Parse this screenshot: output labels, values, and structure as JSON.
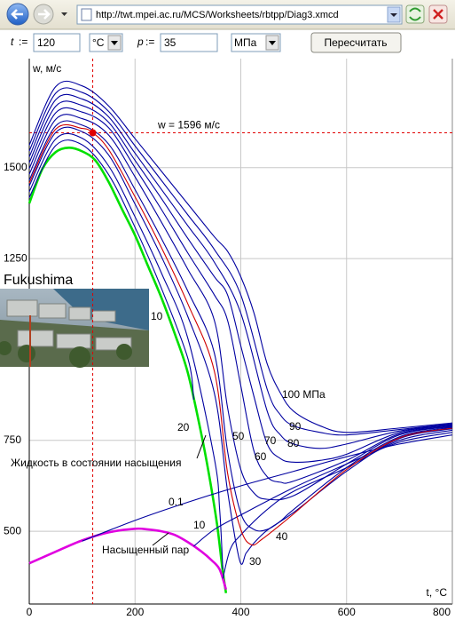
{
  "browser": {
    "url": "http://twt.mpei.ac.ru/MCS/Worksheets/rbtpp/Diag3.xmcd"
  },
  "form": {
    "t_label": "t",
    "assign": ":=",
    "t_value": 120,
    "t_unit": "°C",
    "p_label": "p",
    "p_value": 35,
    "p_unit": "МПа",
    "button": "Пересчитать"
  },
  "chart_data": {
    "type": "line",
    "x_label": "t, °C",
    "y_label": "w, м/с",
    "xlim": [
      0,
      800
    ],
    "ylim": [
      300,
      1800
    ],
    "xticks": [
      0,
      200,
      400,
      600,
      800
    ],
    "yticks": [
      500,
      750,
      1250,
      1500
    ],
    "grid": true,
    "marker": {
      "x": 120,
      "y": 1596,
      "label": "w = 1596 м/с",
      "color": "#e00000"
    },
    "photo_caption": "Fukushima",
    "series": [
      {
        "name": "Жидкость в состоянии насыщения",
        "color": "#00e000",
        "x": [
          0,
          25,
          50,
          75,
          100,
          125,
          150,
          175,
          200,
          225,
          250,
          275,
          300,
          325,
          340,
          355,
          365,
          372
        ],
        "values": [
          1402,
          1497,
          1543,
          1555,
          1545,
          1520,
          1461,
          1387,
          1314,
          1228,
          1142,
          1044,
          935,
          770,
          655,
          520,
          400,
          330
        ]
      },
      {
        "name": "Насыщенный пар",
        "color": "#e000e0",
        "x": [
          0,
          50,
          100,
          150,
          200,
          225,
          250,
          275,
          300,
          325,
          345,
          360,
          372
        ],
        "values": [
          412,
          444,
          475,
          497,
          507,
          505,
          500,
          490,
          470,
          445,
          420,
          395,
          340
        ]
      },
      {
        "name": "0.1",
        "color": "#0000a0",
        "x": [
          100,
          200,
          300,
          400,
          500,
          600,
          700,
          800
        ],
        "values": [
          473,
          530,
          580,
          625,
          665,
          705,
          740,
          765
        ]
      },
      {
        "name": "10",
        "color": "#0000a0",
        "x": [
          0,
          50,
          100,
          150,
          200,
          250,
          300,
          311,
          null,
          311,
          350,
          400,
          500,
          600,
          700,
          800
        ],
        "values": [
          1418,
          1561,
          1563,
          1481,
          1336,
          1168,
          975,
          862,
          null,
          459,
          505,
          545,
          620,
          685,
          745,
          772
        ]
      },
      {
        "name": "20",
        "color": "#0000a0",
        "x": [
          0,
          50,
          100,
          150,
          200,
          250,
          300,
          350,
          360,
          366,
          null,
          366,
          380,
          400,
          450,
          500,
          600,
          700,
          800
        ],
        "values": [
          1434,
          1579,
          1581,
          1505,
          1365,
          1210,
          1030,
          700,
          560,
          395,
          null,
          370,
          450,
          490,
          560,
          610,
          675,
          750,
          778
        ]
      },
      {
        "name": "30",
        "color": "#0000a0",
        "x": [
          0,
          50,
          100,
          150,
          200,
          250,
          300,
          350,
          375,
          398,
          410,
          425,
          450,
          500,
          600,
          700,
          800
        ],
        "values": [
          1450,
          1597,
          1599,
          1535,
          1400,
          1255,
          1090,
          880,
          610,
          419,
          440,
          468,
          503,
          552,
          665,
          755,
          782
        ]
      },
      {
        "color": "#d00000",
        "x": [
          0,
          50,
          100,
          120,
          150,
          200,
          250,
          300,
          350,
          375,
          400,
          420,
          440,
          475,
          500,
          600,
          700,
          800
        ],
        "values": [
          1458,
          1606,
          1608,
          1596,
          1550,
          1420,
          1280,
          1125,
          940,
          660,
          505,
          463,
          478,
          518,
          548,
          670,
          757,
          784
        ]
      },
      {
        "name": "40",
        "color": "#0000a0",
        "x": [
          0,
          50,
          100,
          150,
          200,
          250,
          300,
          350,
          375,
          400,
          425,
          450,
          475,
          500,
          600,
          700,
          800
        ],
        "values": [
          1466,
          1615,
          1617,
          1565,
          1440,
          1305,
          1160,
          990,
          720,
          550,
          505,
          505,
          528,
          560,
          675,
          760,
          786
        ]
      },
      {
        "name": "50",
        "color": "#0000a0",
        "x": [
          0,
          50,
          100,
          150,
          200,
          250,
          300,
          350,
          375,
          400,
          425,
          450,
          500,
          600,
          700,
          800
        ],
        "values": [
          1482,
          1633,
          1635,
          1590,
          1475,
          1350,
          1220,
          1080,
          840,
          670,
          605,
          588,
          598,
          685,
          765,
          788
        ]
      },
      {
        "name": "60",
        "color": "#0000a0",
        "x": [
          0,
          50,
          100,
          150,
          200,
          250,
          300,
          350,
          375,
          400,
          425,
          450,
          475,
          500,
          600,
          700,
          800
        ],
        "values": [
          1498,
          1651,
          1653,
          1610,
          1500,
          1385,
          1265,
          1150,
          1080,
          900,
          720,
          650,
          635,
          638,
          695,
          768,
          790
        ]
      },
      {
        "name": "70",
        "color": "#0000a0",
        "x": [
          0,
          50,
          100,
          150,
          200,
          250,
          300,
          350,
          375,
          400,
          425,
          450,
          475,
          500,
          550,
          600,
          700,
          800
        ],
        "values": [
          1514,
          1669,
          1671,
          1625,
          1520,
          1415,
          1305,
          1200,
          1150,
          1010,
          870,
          740,
          700,
          690,
          695,
          712,
          772,
          792
        ]
      },
      {
        "name": "80",
        "color": "#0000a0",
        "x": [
          0,
          50,
          100,
          150,
          200,
          250,
          300,
          350,
          400,
          450,
          475,
          500,
          550,
          600,
          700,
          800
        ],
        "values": [
          1530,
          1687,
          1689,
          1640,
          1540,
          1440,
          1340,
          1240,
          1100,
          830,
          765,
          740,
          728,
          740,
          776,
          794
        ]
      },
      {
        "name": "90",
        "color": "#0000a0",
        "x": [
          0,
          50,
          100,
          150,
          200,
          250,
          300,
          350,
          400,
          450,
          475,
          500,
          550,
          600,
          700,
          800
        ],
        "values": [
          1546,
          1705,
          1707,
          1655,
          1560,
          1465,
          1370,
          1275,
          1150,
          890,
          820,
          790,
          772,
          765,
          780,
          796
        ]
      },
      {
        "name": "100 МПа",
        "color": "#0000a0",
        "x": [
          0,
          50,
          100,
          150,
          200,
          250,
          300,
          350,
          375,
          400,
          425,
          450,
          475,
          500,
          550,
          600,
          700,
          800
        ],
        "values": [
          1562,
          1723,
          1725,
          1670,
          1580,
          1490,
          1400,
          1310,
          1270,
          1200,
          1100,
          960,
          880,
          830,
          790,
          772,
          784,
          798
        ]
      }
    ]
  }
}
